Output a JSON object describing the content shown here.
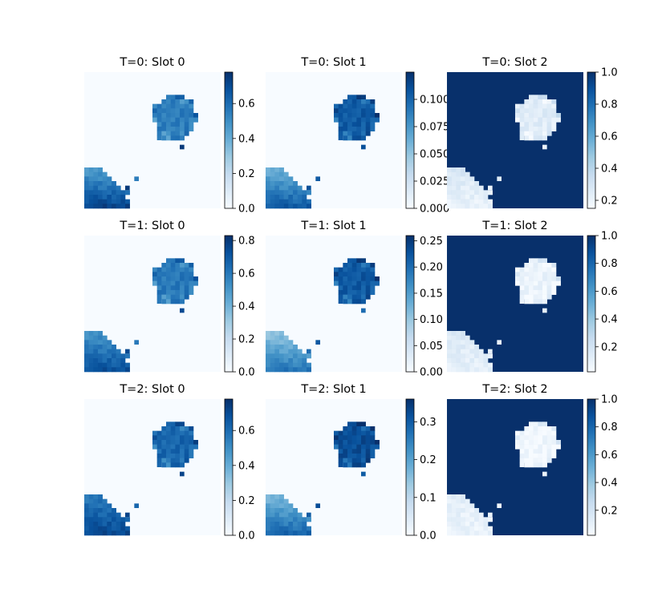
{
  "chart_data": {
    "type": "heatmap",
    "colormap": "Blues",
    "grid": false,
    "panels": [
      {
        "title": "T=0: Slot 0",
        "vmin": 0,
        "vmax": 0.78,
        "colorbar_ticks": [
          0.0,
          0.2,
          0.4,
          0.6
        ],
        "tick_labels": [
          "0.0",
          "0.2",
          "0.4",
          "0.6"
        ],
        "blob_value": 0.55,
        "corner_value": 0.75,
        "corner_gradient": 0.55,
        "background_value": 0.0
      },
      {
        "title": "T=0: Slot 1",
        "vmin": 0,
        "vmax": 0.125,
        "colorbar_ticks": [
          0.0,
          0.025,
          0.05,
          0.075,
          0.1
        ],
        "tick_labels": [
          "0.000",
          "0.025",
          "0.050",
          "0.075",
          "0.100"
        ],
        "blob_value": 0.105,
        "corner_value": 0.11,
        "corner_gradient": 0.09,
        "background_value": 0.0
      },
      {
        "title": "T=0: Slot 2",
        "vmin": 0.15,
        "vmax": 1.0,
        "colorbar_ticks": [
          0.2,
          0.4,
          0.6,
          0.8,
          1.0
        ],
        "tick_labels": [
          "0.2",
          "0.4",
          "0.6",
          "0.8",
          "1.0"
        ],
        "blob_value": 0.25,
        "corner_value": 0.2,
        "corner_gradient": -0.15,
        "background_value": 1.0
      },
      {
        "title": "T=1: Slot 0",
        "vmin": 0,
        "vmax": 0.83,
        "colorbar_ticks": [
          0.0,
          0.2,
          0.4,
          0.6,
          0.8
        ],
        "tick_labels": [
          "0.0",
          "0.2",
          "0.4",
          "0.6",
          "0.8"
        ],
        "blob_value": 0.6,
        "corner_value": 0.75,
        "corner_gradient": 0.45,
        "background_value": 0.0
      },
      {
        "title": "T=1: Slot 1",
        "vmin": 0,
        "vmax": 0.26,
        "colorbar_ticks": [
          0.0,
          0.05,
          0.1,
          0.15,
          0.2,
          0.25
        ],
        "tick_labels": [
          "0.00",
          "0.05",
          "0.10",
          "0.15",
          "0.20",
          "0.25"
        ],
        "blob_value": 0.22,
        "corner_value": 0.2,
        "corner_gradient": 0.18,
        "background_value": 0.0
      },
      {
        "title": "T=1: Slot 2",
        "vmin": 0.02,
        "vmax": 1.0,
        "colorbar_ticks": [
          0.2,
          0.4,
          0.6,
          0.8,
          1.0
        ],
        "tick_labels": [
          "0.2",
          "0.4",
          "0.6",
          "0.8",
          "1.0"
        ],
        "blob_value": 0.08,
        "corner_value": 0.1,
        "corner_gradient": -0.1,
        "background_value": 1.0
      },
      {
        "title": "T=2: Slot 0",
        "vmin": 0,
        "vmax": 0.78,
        "colorbar_ticks": [
          0.0,
          0.2,
          0.4,
          0.6
        ],
        "tick_labels": [
          "0.0",
          "0.2",
          "0.4",
          "0.6"
        ],
        "blob_value": 0.62,
        "corner_value": 0.72,
        "corner_gradient": 0.3,
        "background_value": 0.0
      },
      {
        "title": "T=2: Slot 1",
        "vmin": 0,
        "vmax": 0.36,
        "colorbar_ticks": [
          0.0,
          0.1,
          0.2,
          0.3
        ],
        "tick_labels": [
          "0.0",
          "0.1",
          "0.2",
          "0.3"
        ],
        "blob_value": 0.32,
        "corner_value": 0.3,
        "corner_gradient": 0.25,
        "background_value": 0.0
      },
      {
        "title": "T=2: Slot 2",
        "vmin": 0.02,
        "vmax": 1.0,
        "colorbar_ticks": [
          0.2,
          0.4,
          0.6,
          0.8,
          1.0
        ],
        "tick_labels": [
          "0.2",
          "0.4",
          "0.6",
          "0.8",
          "1.0"
        ],
        "blob_value": 0.05,
        "corner_value": 0.08,
        "corner_gradient": -0.06,
        "background_value": 1.0
      }
    ]
  }
}
